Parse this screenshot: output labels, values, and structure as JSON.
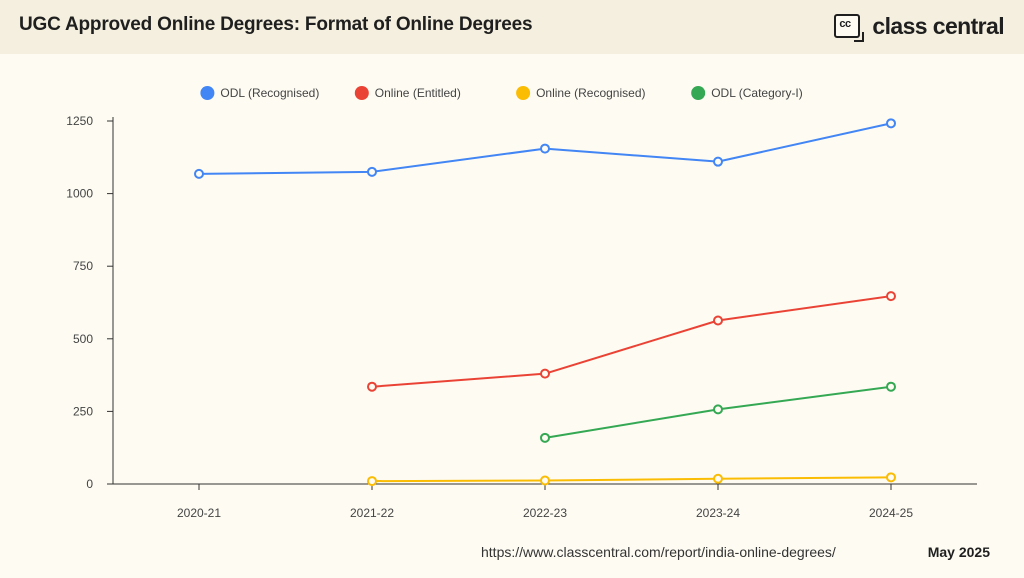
{
  "header": {
    "title": "UGC Approved Online Degrees: Format of Online Degrees",
    "brand_logo_text": "cc",
    "brand_name": "class central"
  },
  "footer": {
    "url": "https://www.classcentral.com/report/india-online-degrees/",
    "date": "May 2025"
  },
  "chart_data": {
    "type": "line",
    "title": "UGC Approved Online Degrees: Format of Online Degrees",
    "xlabel": "",
    "ylabel": "",
    "categories": [
      "2020-21",
      "2021-22",
      "2022-23",
      "2023-24",
      "2024-25"
    ],
    "ylim": [
      0,
      1250
    ],
    "yticks": [
      0,
      250,
      500,
      750,
      1000,
      1250
    ],
    "grid": false,
    "legend_position": "top",
    "series": [
      {
        "name": "ODL (Recognised)",
        "color": "#4285f4",
        "values": [
          1068,
          1075,
          1155,
          1110,
          1242
        ]
      },
      {
        "name": "Online (Entitled)",
        "color": "#ea4335",
        "values": [
          null,
          335,
          380,
          563,
          647
        ]
      },
      {
        "name": "Online (Recognised)",
        "color": "#fbbc04",
        "values": [
          null,
          10,
          12,
          18,
          23
        ]
      },
      {
        "name": "ODL (Category-I)",
        "color": "#34a853",
        "values": [
          null,
          null,
          159,
          257,
          335
        ]
      }
    ]
  }
}
